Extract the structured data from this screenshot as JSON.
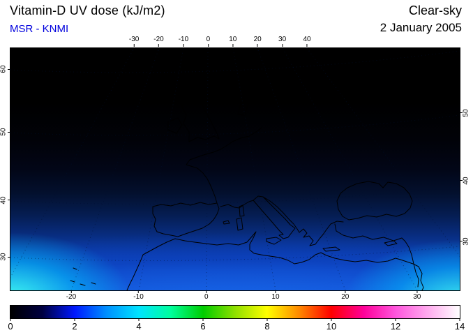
{
  "header": {
    "title": "Vitamin-D UV dose (kJ/m2)",
    "source": "MSR - KNMI",
    "condition": "Clear-sky",
    "date": "2 January 2005"
  },
  "colors": {
    "source_color": "#0000dd",
    "title_color": "#000000",
    "frame_color": "#000000",
    "page_bg": "#ffffff"
  },
  "chart_data": {
    "type": "heatmap",
    "title": "Vitamin-D UV dose (kJ/m2)",
    "data_source": "MSR - KNMI",
    "sky_condition": "Clear-sky",
    "date": "2 January 2005",
    "region": "Europe, Mediterranean and North Africa",
    "unit": "kJ/m2",
    "value_range": [
      0,
      14
    ],
    "axes": {
      "top_lon": {
        "ticks": [
          {
            "label": "-30",
            "pos": 27.5
          },
          {
            "label": "-20",
            "pos": 33
          },
          {
            "label": "-10",
            "pos": 38.5
          },
          {
            "label": "0",
            "pos": 44
          },
          {
            "label": "10",
            "pos": 49.5
          },
          {
            "label": "20",
            "pos": 55
          },
          {
            "label": "30",
            "pos": 60.5
          },
          {
            "label": "40",
            "pos": 66
          }
        ]
      },
      "bottom_lon": {
        "ticks": [
          {
            "label": "-20",
            "pos": 13.5
          },
          {
            "label": "-10",
            "pos": 28.5
          },
          {
            "label": "0",
            "pos": 43.6
          },
          {
            "label": "10",
            "pos": 59
          },
          {
            "label": "20",
            "pos": 74.5
          },
          {
            "label": "30",
            "pos": 90.5
          }
        ]
      },
      "left_lat": {
        "ticks": [
          {
            "label": "60",
            "pos": 9
          },
          {
            "label": "50",
            "pos": 35
          },
          {
            "label": "40",
            "pos": 63
          },
          {
            "label": "30",
            "pos": 86.5
          }
        ]
      },
      "right_lat": {
        "ticks": [
          {
            "label": "50",
            "pos": 27
          },
          {
            "label": "40",
            "pos": 55
          },
          {
            "label": "30",
            "pos": 80
          }
        ]
      }
    },
    "colorbar": {
      "tick_labels": [
        "0",
        "2",
        "4",
        "6",
        "8",
        "10",
        "12",
        "14"
      ],
      "tick_values": [
        0,
        2,
        4,
        6,
        8,
        10,
        12,
        14
      ],
      "stops": [
        {
          "value": 0,
          "color": "#000000"
        },
        {
          "value": 1,
          "color": "#000040"
        },
        {
          "value": 2,
          "color": "#0018ff"
        },
        {
          "value": 3,
          "color": "#0090ff"
        },
        {
          "value": 4,
          "color": "#00e4ff"
        },
        {
          "value": 5,
          "color": "#00ff9c"
        },
        {
          "value": 6,
          "color": "#00cc00"
        },
        {
          "value": 7,
          "color": "#90e000"
        },
        {
          "value": 8,
          "color": "#ffff00"
        },
        {
          "value": 9,
          "color": "#ff8800"
        },
        {
          "value": 10,
          "color": "#ff0000"
        },
        {
          "value": 11,
          "color": "#ff0099"
        },
        {
          "value": 12,
          "color": "#ff55dd"
        },
        {
          "value": 13,
          "color": "#ffaaee"
        },
        {
          "value": 14,
          "color": "#ffffff"
        }
      ]
    },
    "field_estimates_kj_m2": [
      {
        "lat": 60,
        "dose": 0.0
      },
      {
        "lat": 55,
        "dose": 0.0
      },
      {
        "lat": 50,
        "dose": 0.1
      },
      {
        "lat": 45,
        "dose": 0.3
      },
      {
        "lat": 40,
        "dose": 0.8
      },
      {
        "lat": 35,
        "dose": 1.5
      },
      {
        "lat": 30,
        "dose": 2.5
      },
      {
        "lat": 27,
        "dose": 3.5
      }
    ],
    "notes": "Dose near 0 (black) over northern Europe, increasing southward through dark blue to blue; brightest cyan (~3-4 kJ/m2) at the southern edge, especially the SW Atlantic and SE corners."
  }
}
